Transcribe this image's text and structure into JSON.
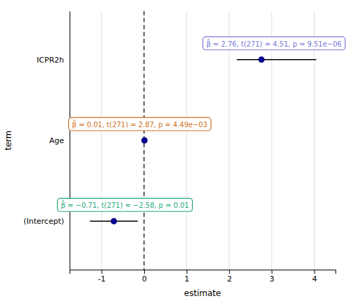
{
  "chart_data": {
    "type": "forest",
    "categories": [
      "ICPR2h",
      "Age",
      "(Intercept)"
    ],
    "values": [
      2.76,
      0.01,
      -0.71
    ],
    "ci_low": [
      2.18,
      -0.008,
      -1.27
    ],
    "ci_high": [
      4.05,
      0.028,
      -0.15
    ],
    "color": "#00008B",
    "reference_line": 0,
    "annotations": [
      {
        "text": "β̂ = 2.76, t(271) = 4.51, p = 9.51e−06",
        "x": 3.1,
        "color": "#7878D8"
      },
      {
        "text": "β̂ = 0.01, t(271) = 2.87, p = 4.49e−03",
        "x": -0.1,
        "color": "#D07020"
      },
      {
        "text": "β̂ = −0.71, t(271) = −2.58, p = 0.01",
        "x": -0.45,
        "color": "#20A878"
      }
    ],
    "xlabel": "estimate",
    "ylabel": "term",
    "xlim": [
      -1.75,
      4.5
    ],
    "xticks": [
      -1,
      0,
      1,
      2,
      3,
      4
    ],
    "grid": true
  }
}
